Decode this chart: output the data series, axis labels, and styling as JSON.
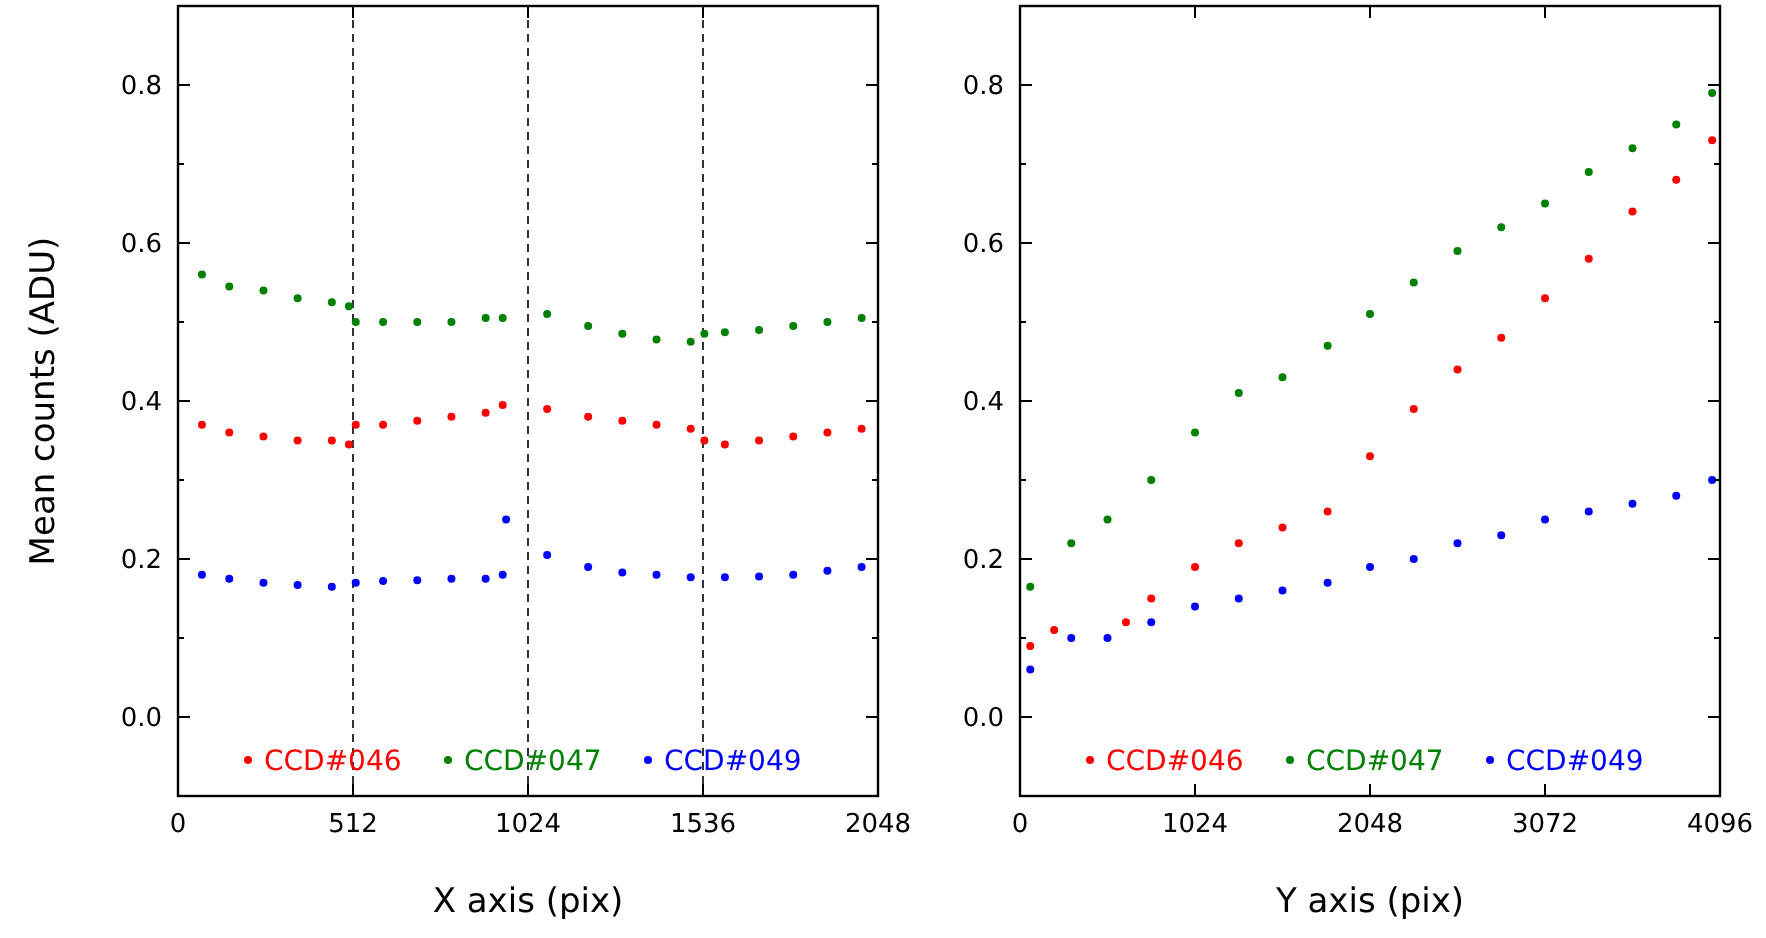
{
  "chart_data": [
    {
      "type": "scatter",
      "xlabel": "X axis (pix)",
      "ylabel": "Mean counts (ADU)",
      "xlim": [
        0,
        2048
      ],
      "xticks": [
        0,
        512,
        1024,
        1536,
        2048
      ],
      "ylim": [
        -0.1,
        0.9
      ],
      "yticks": [
        {
          "value": 0,
          "label": "0.0"
        },
        {
          "value": 0.1,
          "label": null
        },
        {
          "value": 0.2,
          "label": "0.2"
        },
        {
          "value": 0.3,
          "label": null
        },
        {
          "value": 0.4,
          "label": "0.4"
        },
        {
          "value": 0.5,
          "label": null
        },
        {
          "value": 0.6,
          "label": "0.6"
        },
        {
          "value": 0.7,
          "label": null
        },
        {
          "value": 0.8,
          "label": "0.8"
        }
      ],
      "marker": "circle",
      "legend": "bottom",
      "grid": false,
      "ref_lines": [
        {
          "axis": "x",
          "value": 512,
          "line_style": "dashed",
          "color": "#000000"
        },
        {
          "axis": "x",
          "value": 1024,
          "line_style": "dashed",
          "color": "#000000"
        },
        {
          "axis": "x",
          "value": 1536,
          "line_style": "dashed",
          "color": "#000000"
        }
      ],
      "series": [
        {
          "name": "CCD#046",
          "color": "#ff0000",
          "x": [
            70,
            150,
            250,
            350,
            450,
            500,
            520,
            600,
            700,
            800,
            900,
            950,
            1080,
            1200,
            1300,
            1400,
            1500,
            1540,
            1600,
            1700,
            1800,
            1900,
            2000
          ],
          "values": [
            0.37,
            0.36,
            0.355,
            0.35,
            0.35,
            0.345,
            0.37,
            0.37,
            0.375,
            0.38,
            0.385,
            0.395,
            0.39,
            0.38,
            0.375,
            0.37,
            0.365,
            0.35,
            0.345,
            0.35,
            0.355,
            0.36,
            0.365
          ]
        },
        {
          "name": "CCD#047",
          "color": "#008000",
          "x": [
            70,
            150,
            250,
            350,
            450,
            500,
            520,
            600,
            700,
            800,
            900,
            950,
            1080,
            1200,
            1300,
            1400,
            1500,
            1540,
            1600,
            1700,
            1800,
            1900,
            2000
          ],
          "values": [
            0.56,
            0.545,
            0.54,
            0.53,
            0.525,
            0.52,
            0.5,
            0.5,
            0.5,
            0.5,
            0.505,
            0.505,
            0.51,
            0.495,
            0.485,
            0.478,
            0.475,
            0.485,
            0.487,
            0.49,
            0.495,
            0.5,
            0.505
          ]
        },
        {
          "name": "CCD#049",
          "color": "#0000ff",
          "x": [
            70,
            150,
            250,
            350,
            450,
            520,
            600,
            700,
            800,
            900,
            950,
            960,
            1080,
            1200,
            1300,
            1400,
            1500,
            1600,
            1700,
            1800,
            1900,
            2000
          ],
          "values": [
            0.18,
            0.175,
            0.17,
            0.167,
            0.165,
            0.17,
            0.172,
            0.173,
            0.175,
            0.175,
            0.18,
            0.25,
            0.205,
            0.19,
            0.183,
            0.18,
            0.177,
            0.177,
            0.178,
            0.18,
            0.185,
            0.19
          ]
        }
      ]
    },
    {
      "type": "scatter",
      "xlabel": "Y axis (pix)",
      "xlim": [
        0,
        4096
      ],
      "xticks": [
        0,
        1024,
        2048,
        3072,
        4096
      ],
      "ylim": [
        -0.1,
        0.9
      ],
      "yticks": [
        {
          "value": 0,
          "label": "0.0"
        },
        {
          "value": 0.1,
          "label": null
        },
        {
          "value": 0.2,
          "label": "0.2"
        },
        {
          "value": 0.3,
          "label": null
        },
        {
          "value": 0.4,
          "label": "0.4"
        },
        {
          "value": 0.5,
          "label": null
        },
        {
          "value": 0.6,
          "label": "0.6"
        },
        {
          "value": 0.7,
          "label": null
        },
        {
          "value": 0.8,
          "label": "0.8"
        }
      ],
      "marker": "circle",
      "legend": "bottom",
      "grid": false,
      "series": [
        {
          "name": "CCD#046",
          "color": "#ff0000",
          "x": [
            60,
            200,
            620,
            768,
            1024,
            1280,
            1536,
            1800,
            2048,
            2304,
            2560,
            2816,
            3072,
            3328,
            3584,
            3840,
            4050
          ],
          "values": [
            0.09,
            0.11,
            0.12,
            0.15,
            0.19,
            0.22,
            0.24,
            0.26,
            0.33,
            0.39,
            0.44,
            0.48,
            0.53,
            0.58,
            0.64,
            0.68,
            0.73
          ]
        },
        {
          "name": "CCD#047",
          "color": "#008000",
          "x": [
            60,
            300,
            512,
            768,
            1024,
            1280,
            1536,
            1800,
            2048,
            2304,
            2560,
            2816,
            3072,
            3328,
            3584,
            3840,
            4050
          ],
          "values": [
            0.165,
            0.22,
            0.25,
            0.3,
            0.36,
            0.41,
            0.43,
            0.47,
            0.51,
            0.55,
            0.59,
            0.62,
            0.65,
            0.69,
            0.72,
            0.75,
            0.79
          ]
        },
        {
          "name": "CCD#049",
          "color": "#0000ff",
          "x": [
            60,
            300,
            512,
            768,
            1024,
            1280,
            1536,
            1800,
            2048,
            2304,
            2560,
            2816,
            3072,
            3328,
            3584,
            3840,
            4050
          ],
          "values": [
            0.06,
            0.1,
            0.1,
            0.12,
            0.14,
            0.15,
            0.16,
            0.17,
            0.19,
            0.2,
            0.22,
            0.23,
            0.25,
            0.26,
            0.27,
            0.28,
            0.3
          ]
        }
      ]
    }
  ]
}
